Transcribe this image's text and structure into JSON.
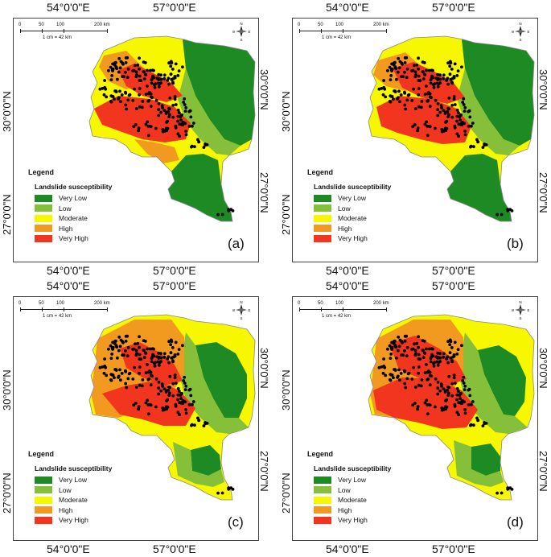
{
  "longitudes": [
    "54°0'0\"E",
    "57°0'0\"E"
  ],
  "latitudes": [
    "30°0'0\"N",
    "27°0'0\"N"
  ],
  "scale": {
    "ticks": [
      "0",
      "50",
      "100",
      "200 km"
    ],
    "ratio": "1 cm = 42 km"
  },
  "compass": {
    "n": "N",
    "s": "S",
    "e": "E",
    "w": "W"
  },
  "legend": {
    "title": "Legend",
    "subtitle": "Landslide susceptibility",
    "classes": [
      {
        "label": "Very Low",
        "color": "#1e8a24"
      },
      {
        "label": "Low",
        "color": "#86c03a"
      },
      {
        "label": "Moderate",
        "color": "#f7f700"
      },
      {
        "label": "High",
        "color": "#f29a1f"
      },
      {
        "label": "Very High",
        "color": "#f2351f"
      }
    ]
  },
  "panels": [
    {
      "label": "(a)",
      "variant": "a"
    },
    {
      "label": "(b)",
      "variant": "b"
    },
    {
      "label": "(c)",
      "variant": "c"
    },
    {
      "label": "(d)",
      "variant": "d"
    }
  ],
  "landslide_points": {
    "color": "#000000"
  }
}
